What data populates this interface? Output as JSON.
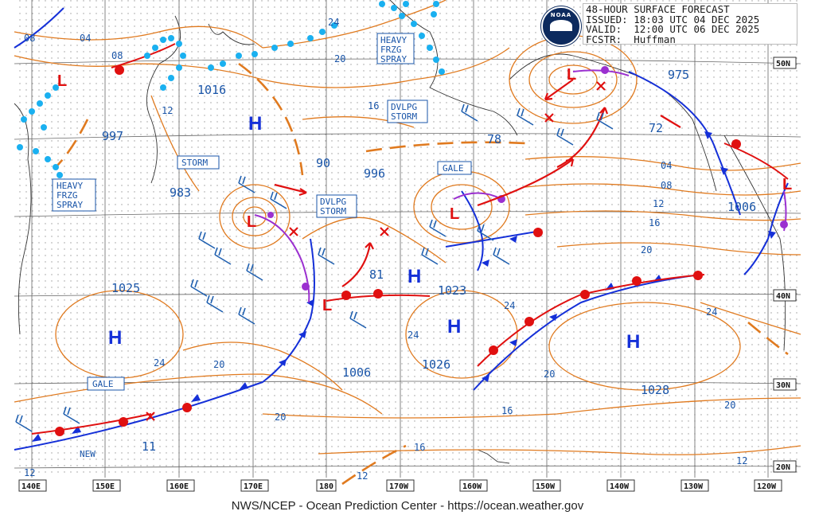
{
  "header": {
    "line1": "48-HOUR SURFACE FORECAST",
    "line2": "ISSUED: 18:03 UTC 04 DEC 2025",
    "line3": "VALID:  12:00 UTC 06 DEC 2025",
    "line4": "FCSTR:  Huffman",
    "logo_text": "NOAA"
  },
  "footer": "NWS/NCEP - Ocean Prediction Center - https://ocean.weather.gov",
  "longitude_labels": [
    "140E",
    "150E",
    "160E",
    "170E",
    "180",
    "170W",
    "160W",
    "150W",
    "140W",
    "130W",
    "120W"
  ],
  "latitude_labels": [
    "50N",
    "40N",
    "30N",
    "20N"
  ],
  "pressure_labels": [
    "997",
    "1016",
    "983",
    "90",
    "996",
    "78",
    "975",
    "72",
    "1006",
    "81",
    "1023",
    "1025",
    "1006",
    "1026",
    "1028",
    "11"
  ],
  "isobar_labels": [
    "08",
    "04",
    "08",
    "12",
    "24",
    "20",
    "16",
    "04",
    "08",
    "12",
    "16",
    "20",
    "24",
    "24",
    "24",
    "20",
    "20",
    "20",
    "16",
    "16",
    "12",
    "20",
    "12"
  ],
  "high_letter": "H",
  "low_letter": "L",
  "text_boxes": [
    "HEAVY\nFRZG\nSPRAY",
    "DVLPG\nSTORM",
    "STORM",
    "DVLPG\nSTORM",
    "GALE",
    "HEAVY\nFRZG\nSPRAY",
    "GALE"
  ],
  "new_label": "NEW",
  "colors": {
    "isobar": "#e07a1f",
    "front_cold": "#1530d8",
    "front_warm": "#e01010",
    "occluded": "#9b30d0",
    "wind": "#2060b0",
    "ice": "#1ab0f0",
    "label": "#1a55a8",
    "grid": "#777",
    "land": "#333"
  }
}
